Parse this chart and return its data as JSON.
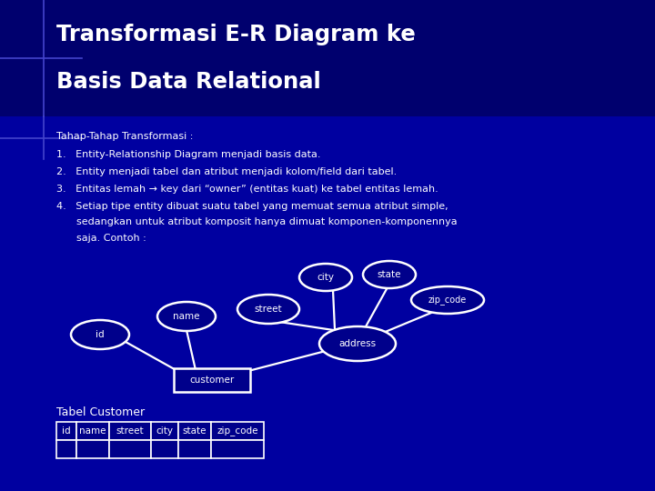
{
  "bg_color": "#00008B",
  "title_line1": "Transformasi E-R Diagram ke",
  "title_line2": "Basis Data Relational",
  "title_color": "#ffffff",
  "title_bg": "#00006e",
  "content_bg": "#0000aa",
  "body_text_color": "#ffffff",
  "table_label": "Tabel Customer",
  "table_cols": [
    "id",
    "name",
    "street",
    "city",
    "state",
    "zip_code"
  ],
  "ellipse_color": "#ffffff",
  "ellipse_bg": "#00008B",
  "rect_color": "#ffffff",
  "rect_bg": "#00008B",
  "deco_line_color": "#4444cc"
}
